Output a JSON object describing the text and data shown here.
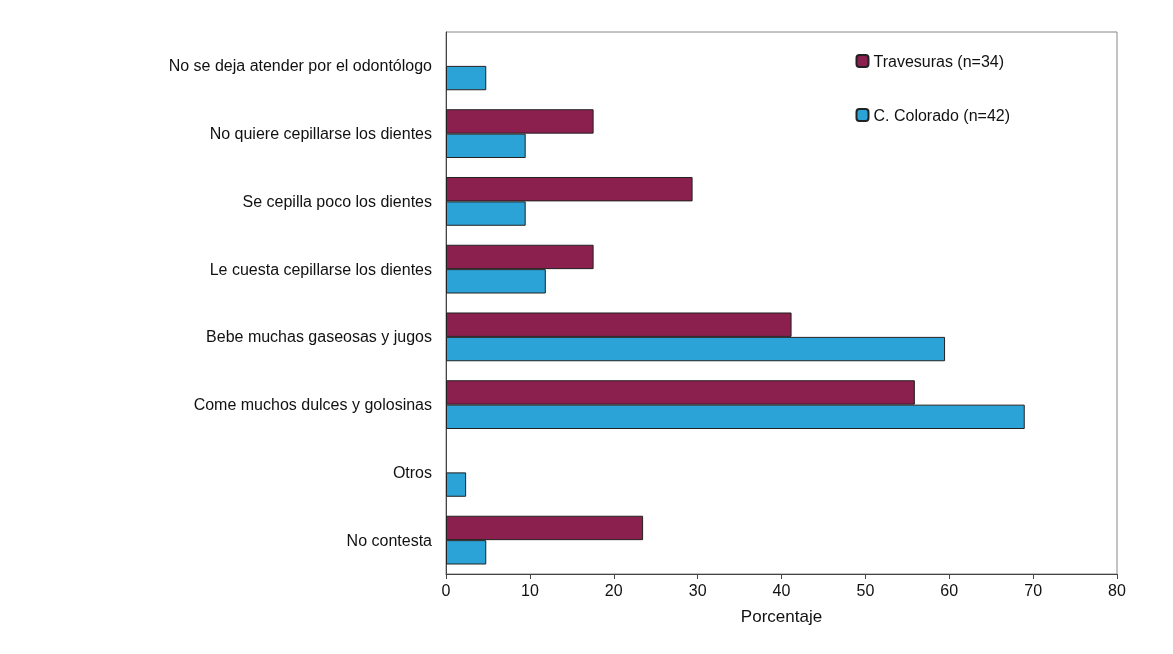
{
  "chart_data": {
    "type": "bar",
    "orientation": "horizontal",
    "xlabel": "Porcentaje",
    "categories": [
      "No se deja atender por el odontólogo",
      "No quiere cepillarse los dientes",
      "Se cepilla poco los dientes",
      "Le cuesta cepillarse los dientes",
      "Bebe muchas gaseosas y jugos",
      "Come muchos dulces y golosinas",
      "Otros",
      "No contesta"
    ],
    "series": [
      {
        "name": "Travesuras (n=34)",
        "color": "#8b1f4e",
        "values": [
          null,
          17.6,
          29.4,
          17.6,
          41.2,
          55.9,
          null,
          23.5
        ]
      },
      {
        "name": "C. Colorado (n=42)",
        "color": "#2ba3d6",
        "values": [
          4.8,
          9.5,
          9.5,
          11.9,
          59.5,
          69.0,
          2.4,
          4.8
        ]
      }
    ],
    "xlim": [
      0,
      80
    ],
    "xticks": [
      0,
      10,
      20,
      30,
      40,
      50,
      60,
      70,
      80
    ],
    "grid": false,
    "legend": "top right"
  }
}
